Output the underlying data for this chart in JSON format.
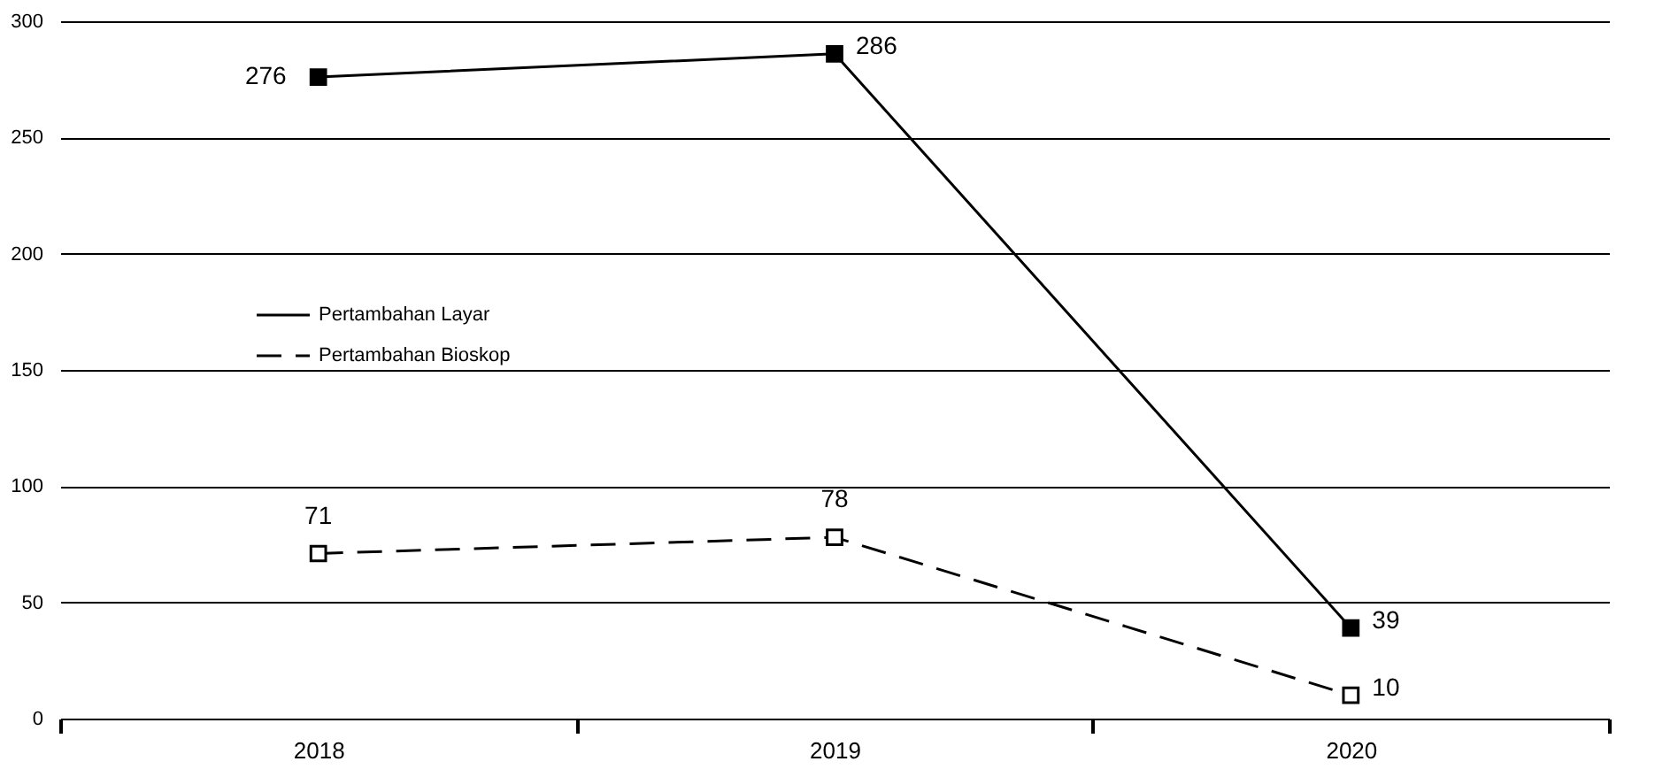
{
  "chart_data": {
    "type": "line",
    "categories": [
      "2018",
      "2019",
      "2020"
    ],
    "series": [
      {
        "name": "Pertambahan Layar",
        "color": "#000000",
        "values": [
          276,
          286,
          39
        ],
        "line_style": "solid"
      },
      {
        "name": "Pertambahan Bioskop",
        "color": "#000000",
        "values": [
          71,
          78,
          10
        ],
        "line_style": "dashed"
      }
    ],
    "ylim": [
      0,
      300
    ],
    "yticks": [
      0,
      50,
      100,
      150,
      200,
      250,
      300
    ],
    "grid": "y",
    "legend": "top left",
    "marker": "square",
    "data_labels": true
  }
}
